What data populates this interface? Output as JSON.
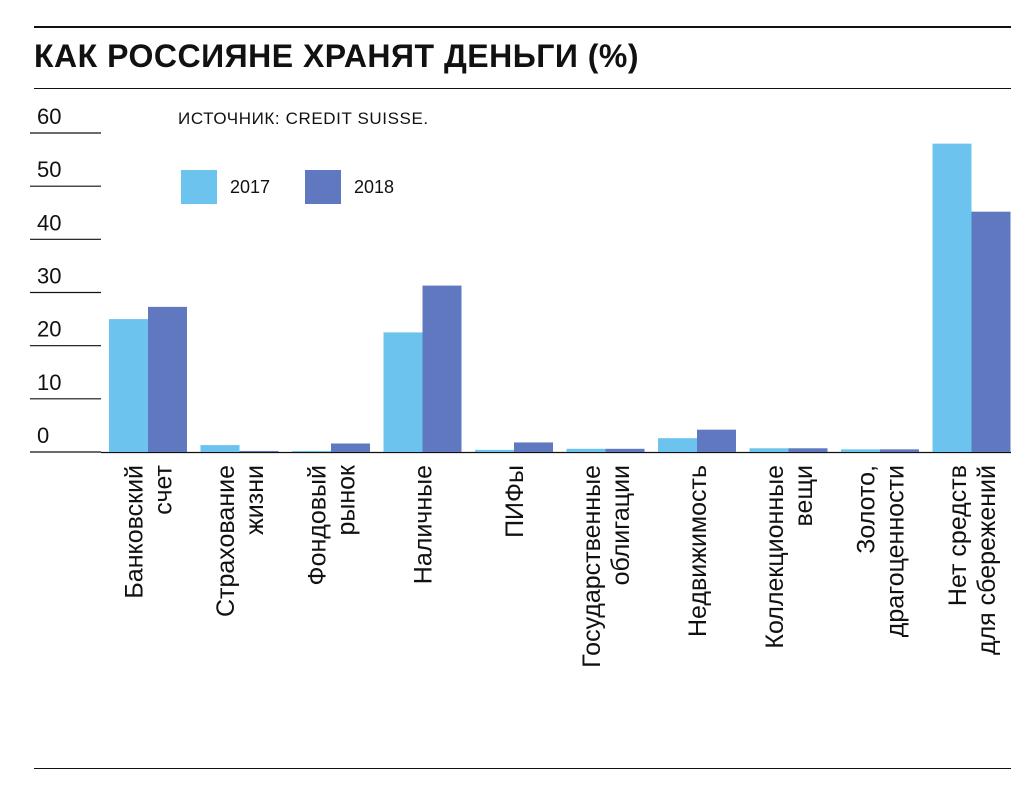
{
  "title": "КАК РОССИЯНЕ ХРАНЯТ ДЕНЬГИ (%)",
  "source": "ИСТОЧНИК: CREDIT SUISSE.",
  "chart_data": {
    "type": "bar",
    "categories": [
      [
        "Банковский",
        "счет"
      ],
      [
        "Страхование",
        "жизни"
      ],
      [
        "Фондовый",
        "рынок"
      ],
      [
        "Наличные"
      ],
      [
        "ПИФы"
      ],
      [
        "Государственные",
        "облигации"
      ],
      [
        "Недвижимость"
      ],
      [
        "Коллекционные",
        "вещи"
      ],
      [
        "Золото,",
        "драгоценности"
      ],
      [
        "Нет средств",
        "для сбережений"
      ]
    ],
    "series": [
      {
        "name": "2017",
        "color": "#6cc4ee",
        "values": [
          25,
          1.3,
          0.2,
          22.5,
          0.4,
          0.6,
          2.6,
          0.7,
          0.5,
          58
        ]
      },
      {
        "name": "2018",
        "color": "#5f78bf",
        "values": [
          27.3,
          0.2,
          1.6,
          31.3,
          1.8,
          0.6,
          4.2,
          0.7,
          0.5,
          45.2
        ]
      }
    ],
    "yticks": [
      "60",
      "50",
      "40",
      "30",
      "20",
      "10",
      "0"
    ],
    "ylim": [
      0,
      60
    ],
    "legend_position": "top-left",
    "grid": false
  }
}
